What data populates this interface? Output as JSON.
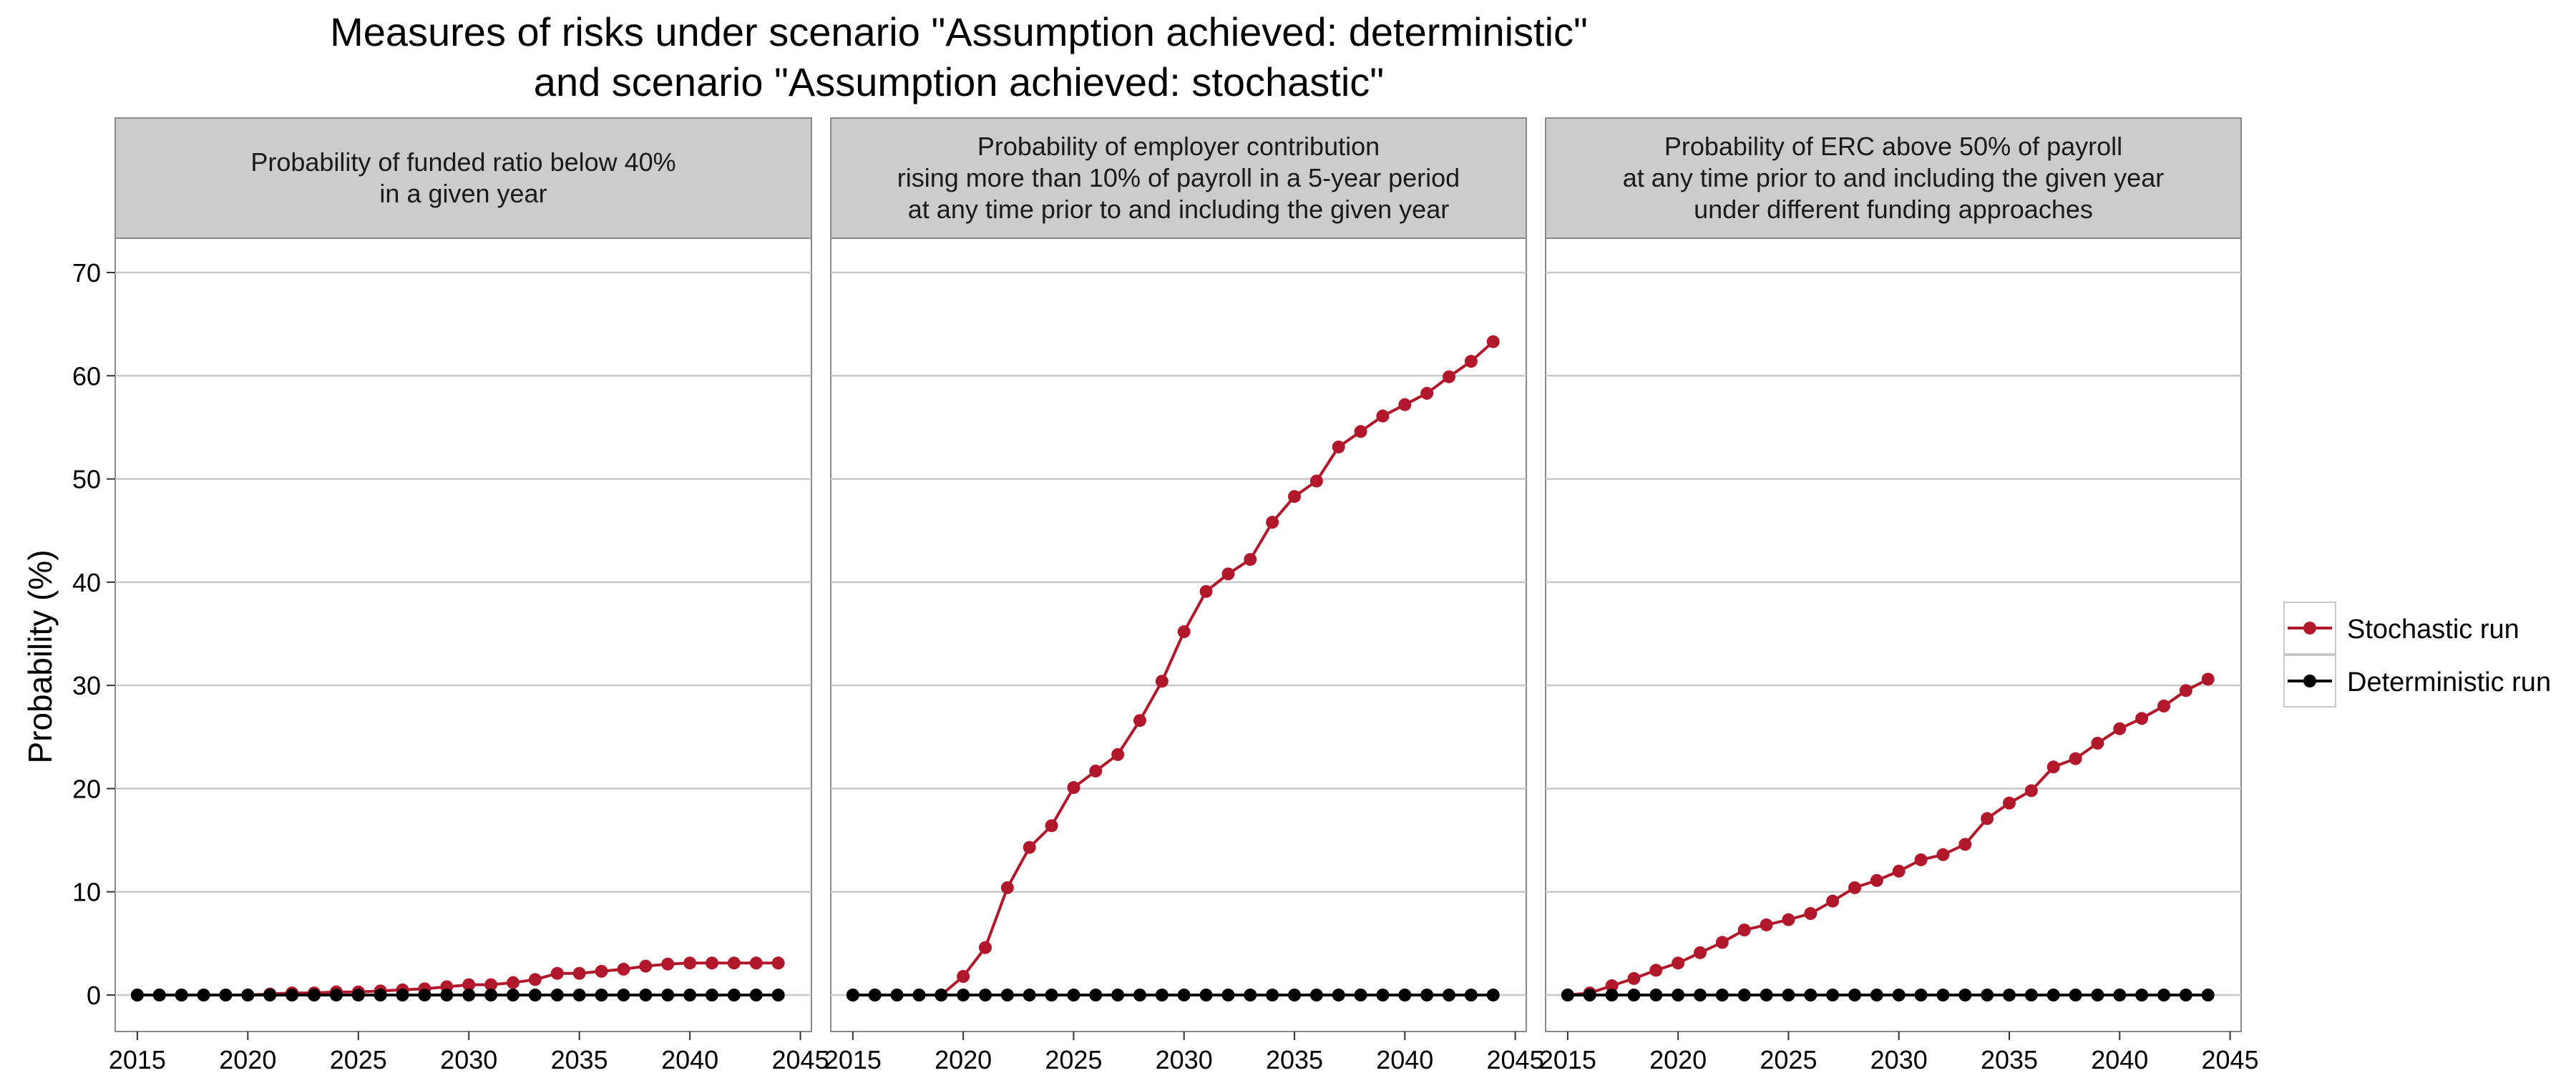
{
  "title_line1": "Measures of risks under scenario \"Assumption achieved: deterministic\"",
  "title_line2": "and scenario \"Assumption achieved: stochastic\"",
  "ylabel": "Probability (%)",
  "colors": {
    "stochastic": "#b2182b",
    "deterministic": "#000000",
    "strip_bg": "#cccccc",
    "grid": "#c8c8c8"
  },
  "legend": {
    "position": "right",
    "items": [
      "Stochastic run",
      "Deterministic run"
    ]
  },
  "chart_data": {
    "type": "line",
    "grid": true,
    "ylim": [
      -3,
      73
    ],
    "xlim": [
      2014,
      2045.5
    ],
    "y_ticks": [
      0,
      10,
      20,
      30,
      40,
      50,
      60,
      70
    ],
    "x_ticks": [
      2015,
      2020,
      2025,
      2030,
      2035,
      2040,
      2045
    ],
    "x": [
      2015,
      2016,
      2017,
      2018,
      2019,
      2020,
      2021,
      2022,
      2023,
      2024,
      2025,
      2026,
      2027,
      2028,
      2029,
      2030,
      2031,
      2032,
      2033,
      2034,
      2035,
      2036,
      2037,
      2038,
      2039,
      2040,
      2041,
      2042,
      2043,
      2044
    ],
    "panels": [
      {
        "strip": [
          "Probability of funded ratio below 40%",
          "in a given year"
        ],
        "series": [
          {
            "name": "Stochastic run",
            "values": [
              0,
              0,
              0,
              0,
              0,
              0,
              0.1,
              0.2,
              0.2,
              0.3,
              0.3,
              0.4,
              0.5,
              0.6,
              0.8,
              1.0,
              1.0,
              1.2,
              1.5,
              2.1,
              2.1,
              2.3,
              2.5,
              2.8,
              3.0,
              3.1,
              3.1,
              3.1,
              3.1,
              3.1
            ]
          },
          {
            "name": "Deterministic run",
            "values": [
              0,
              0,
              0,
              0,
              0,
              0,
              0,
              0,
              0,
              0,
              0,
              0,
              0,
              0,
              0,
              0,
              0,
              0,
              0,
              0,
              0,
              0,
              0,
              0,
              0,
              0,
              0,
              0,
              0,
              0
            ]
          }
        ]
      },
      {
        "strip": [
          "Probability of employer contribution",
          "rising more than 10% of payroll in a 5-year period",
          "at any time prior to and including the given year"
        ],
        "series": [
          {
            "name": "Stochastic run",
            "values": [
              0,
              0,
              0,
              0,
              0,
              1.8,
              4.6,
              10.4,
              14.3,
              16.4,
              20.1,
              21.7,
              23.3,
              26.6,
              30.4,
              35.2,
              39.1,
              40.8,
              42.2,
              45.8,
              48.3,
              49.8,
              53.1,
              54.6,
              56.1,
              57.2,
              58.3,
              59.9,
              61.4,
              63.3
            ]
          },
          {
            "name": "Deterministic run",
            "values": [
              0,
              0,
              0,
              0,
              0,
              0,
              0,
              0,
              0,
              0,
              0,
              0,
              0,
              0,
              0,
              0,
              0,
              0,
              0,
              0,
              0,
              0,
              0,
              0,
              0,
              0,
              0,
              0,
              0,
              0
            ]
          }
        ]
      },
      {
        "strip": [
          "Probability of ERC above 50% of payroll",
          "at any time prior to and including the given year",
          "under different funding approaches"
        ],
        "series": [
          {
            "name": "Stochastic run",
            "values": [
              0,
              0.2,
              0.9,
              1.6,
              2.4,
              3.1,
              4.1,
              5.1,
              6.3,
              6.8,
              7.3,
              7.9,
              9.1,
              10.4,
              11.1,
              12.0,
              13.1,
              13.6,
              14.6,
              17.1,
              18.6,
              19.8,
              22.1,
              22.9,
              24.4,
              25.8,
              26.8,
              28.0,
              29.5,
              30.6
            ]
          },
          {
            "name": "Deterministic run",
            "values": [
              0,
              0,
              0,
              0,
              0,
              0,
              0,
              0,
              0,
              0,
              0,
              0,
              0,
              0,
              0,
              0,
              0,
              0,
              0,
              0,
              0,
              0,
              0,
              0,
              0,
              0,
              0,
              0,
              0,
              0
            ]
          }
        ]
      }
    ]
  }
}
